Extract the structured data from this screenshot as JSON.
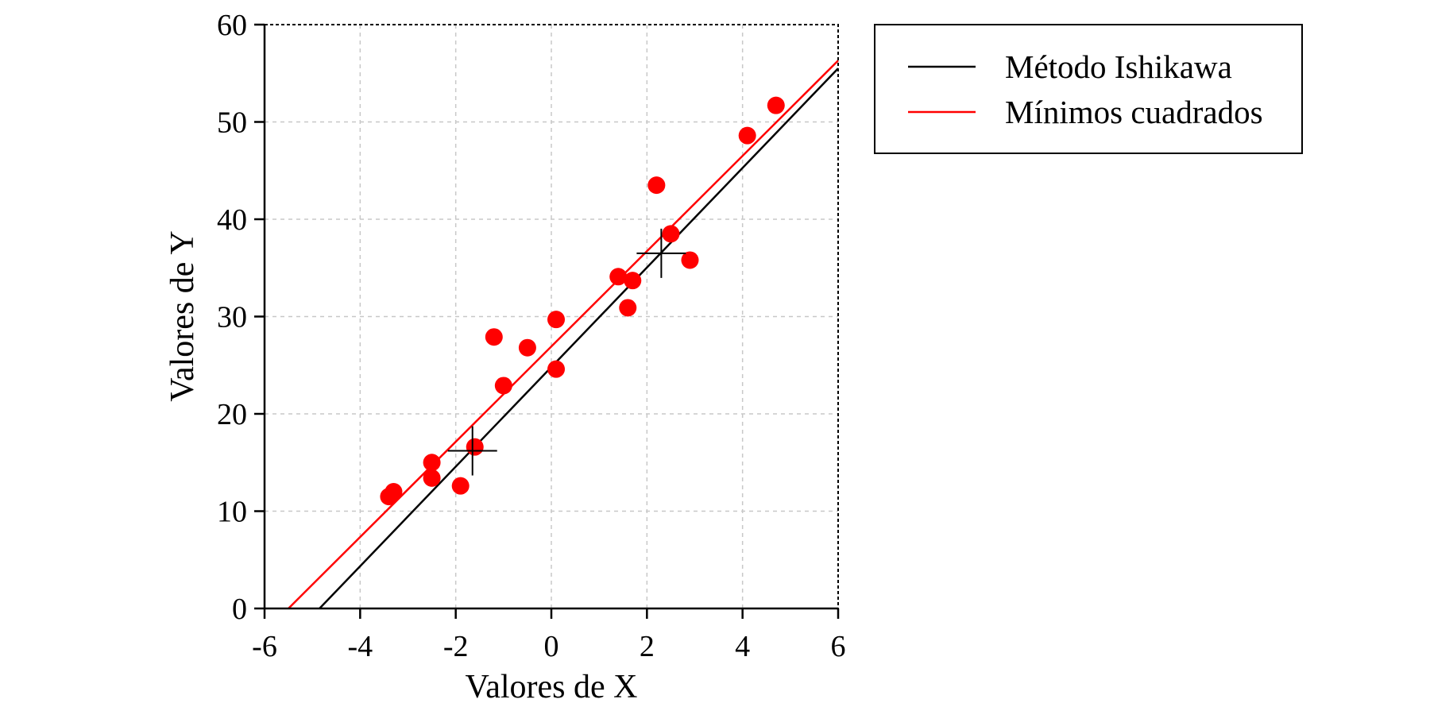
{
  "chart_data": {
    "type": "scatter",
    "xlabel": "Valores de X",
    "ylabel": "Valores de Y",
    "xlim": [
      -6,
      6
    ],
    "ylim": [
      0,
      60
    ],
    "xticks": [
      -6,
      -4,
      -2,
      0,
      2,
      4,
      6
    ],
    "yticks": [
      0,
      10,
      20,
      30,
      40,
      50,
      60
    ],
    "xtick_labels": [
      "-6",
      "-4",
      "-2",
      "0",
      "2",
      "4",
      "6"
    ],
    "ytick_labels": [
      "0",
      "10",
      "20",
      "30",
      "40",
      "50",
      "60"
    ],
    "grid": true,
    "legend_position": "outside-right-top",
    "points": {
      "color": "#ff0000",
      "x": [
        -3.4,
        -3.3,
        -2.5,
        -2.5,
        -1.9,
        -1.6,
        -1.2,
        -1.0,
        -0.5,
        0.1,
        0.1,
        1.4,
        1.7,
        1.6,
        2.2,
        2.5,
        2.9,
        4.1,
        4.7
      ],
      "y": [
        11.5,
        12.0,
        15.0,
        13.4,
        12.6,
        16.6,
        27.9,
        22.9,
        26.8,
        29.7,
        24.6,
        34.1,
        33.7,
        30.9,
        43.5,
        38.5,
        35.8,
        48.6,
        51.7
      ]
    },
    "series": [
      {
        "name": "Método Ishikawa",
        "color": "#000000",
        "x": [
          -4.85,
          6.0
        ],
        "y": [
          0,
          55.5
        ]
      },
      {
        "name": "Mínimos cuadrados",
        "color": "#ff0000",
        "x": [
          -5.5,
          6.0
        ],
        "y": [
          0,
          56.3
        ]
      }
    ],
    "centroids": [
      {
        "x": -1.65,
        "y": 16.2
      },
      {
        "x": 2.3,
        "y": 36.5
      }
    ]
  }
}
